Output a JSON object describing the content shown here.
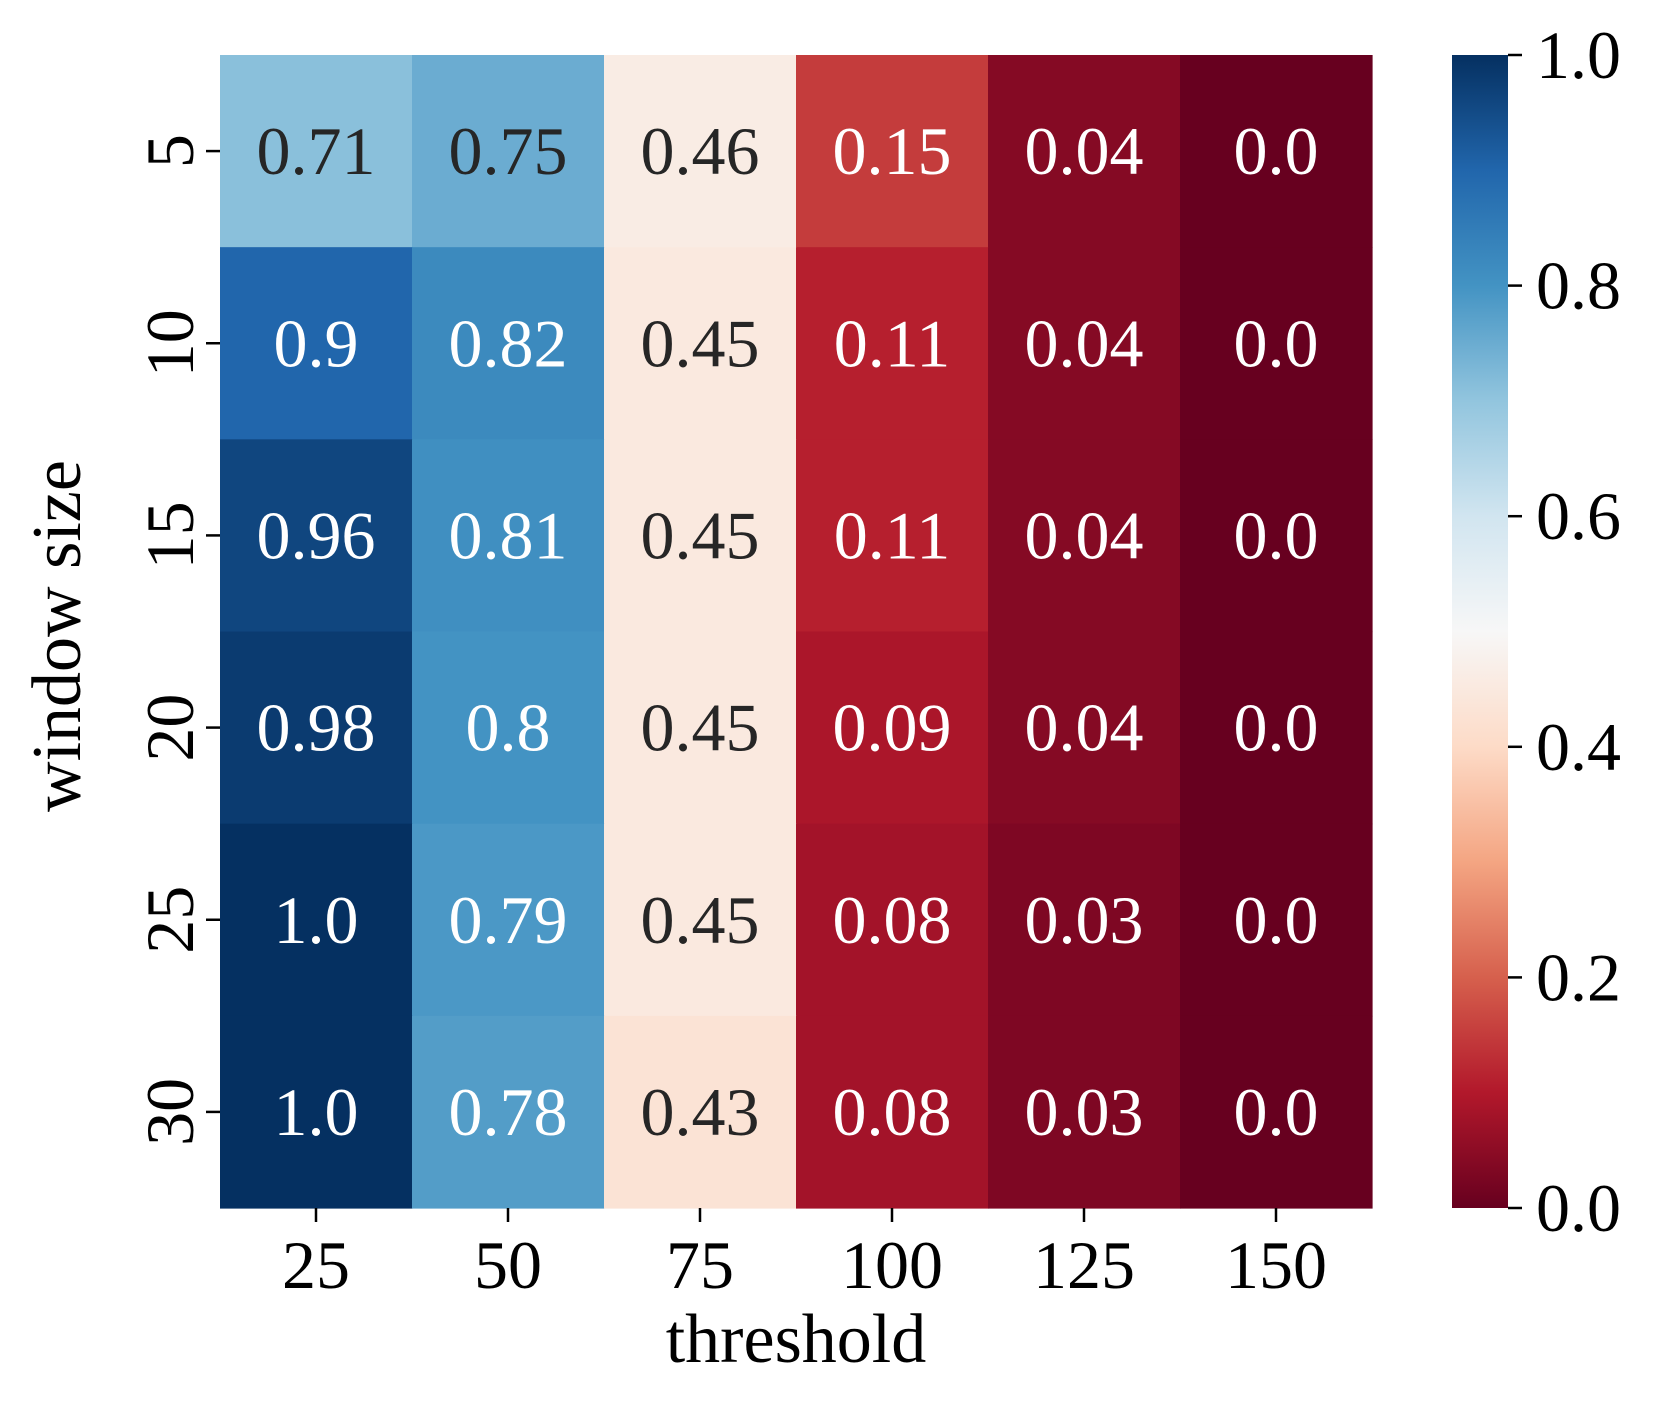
{
  "chart_data": {
    "type": "heatmap",
    "title": "",
    "xlabel": "threshold",
    "ylabel": "window size",
    "x_categories": [
      "25",
      "50",
      "75",
      "100",
      "125",
      "150"
    ],
    "y_categories": [
      "5",
      "10",
      "15",
      "20",
      "25",
      "30"
    ],
    "values": [
      [
        0.71,
        0.75,
        0.46,
        0.15,
        0.04,
        0.0
      ],
      [
        0.9,
        0.82,
        0.45,
        0.11,
        0.04,
        0.0
      ],
      [
        0.96,
        0.81,
        0.45,
        0.11,
        0.04,
        0.0
      ],
      [
        0.98,
        0.8,
        0.45,
        0.09,
        0.04,
        0.0
      ],
      [
        1.0,
        0.79,
        0.45,
        0.08,
        0.03,
        0.0
      ],
      [
        1.0,
        0.78,
        0.43,
        0.08,
        0.03,
        0.0
      ]
    ],
    "value_labels": [
      [
        "0.71",
        "0.75",
        "0.46",
        "0.15",
        "0.04",
        "0.0"
      ],
      [
        "0.9",
        "0.82",
        "0.45",
        "0.11",
        "0.04",
        "0.0"
      ],
      [
        "0.96",
        "0.81",
        "0.45",
        "0.11",
        "0.04",
        "0.0"
      ],
      [
        "0.98",
        "0.8",
        "0.45",
        "0.09",
        "0.04",
        "0.0"
      ],
      [
        "1.0",
        "0.79",
        "0.45",
        "0.08",
        "0.03",
        "0.0"
      ],
      [
        "1.0",
        "0.78",
        "0.43",
        "0.08",
        "0.03",
        "0.0"
      ]
    ],
    "colormap": "RdBu",
    "vmin": 0.0,
    "vmax": 1.0,
    "colorbar_ticks": [
      "0.0",
      "0.2",
      "0.4",
      "0.6",
      "0.8",
      "1.0"
    ],
    "colorbar_placement": "right",
    "grid": false,
    "annotated": true,
    "label_colors": {
      "light": "#ffffff",
      "dark": "#262626"
    }
  }
}
